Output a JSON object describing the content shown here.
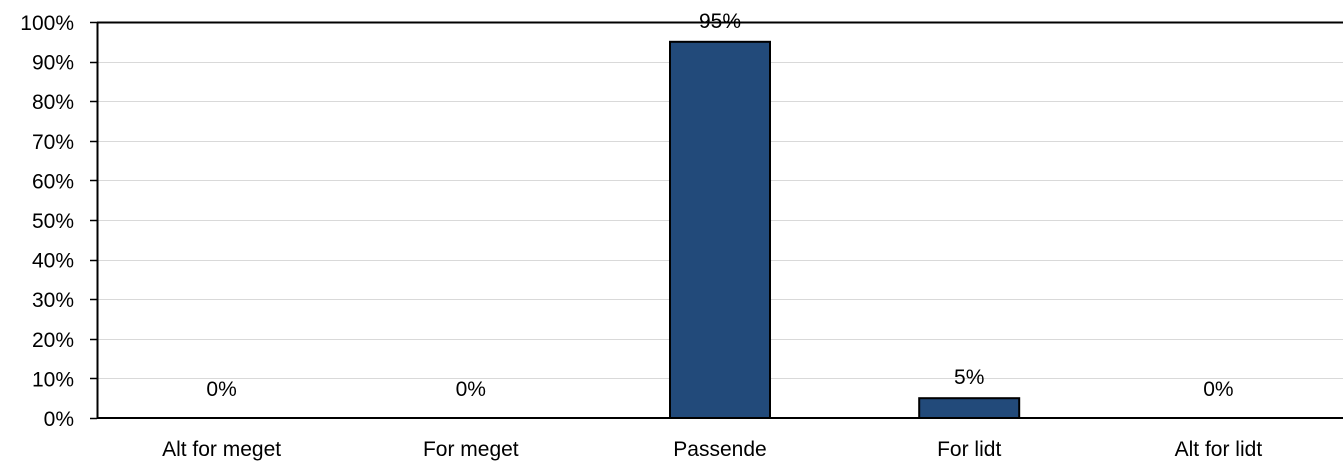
{
  "chart_data": {
    "type": "bar",
    "categories": [
      "Alt for meget",
      "For meget",
      "Passende",
      "For lidt",
      "Alt for lidt"
    ],
    "values": [
      0,
      0,
      95,
      5,
      0
    ],
    "data_labels": [
      "0%",
      "0%",
      "95%",
      "5%",
      "0%"
    ],
    "ylim": [
      0,
      100
    ],
    "yticks": [
      0,
      10,
      20,
      30,
      40,
      50,
      60,
      70,
      80,
      90,
      100
    ],
    "ytick_labels": [
      "0%",
      "10%",
      "20%",
      "30%",
      "40%",
      "50%",
      "60%",
      "70%",
      "80%",
      "90%",
      "100%"
    ],
    "grid": true,
    "legend": "none",
    "colors": {
      "bar": "#224a7a",
      "bar_border": "#000000",
      "grid": "#d9d9d9",
      "axis": "#000000"
    }
  }
}
